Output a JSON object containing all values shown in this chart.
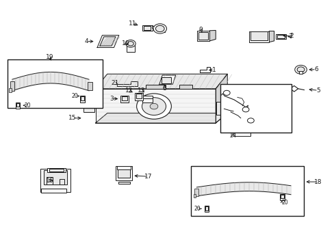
{
  "bg_color": "#ffffff",
  "line_color": "#1a1a1a",
  "fig_width": 4.89,
  "fig_height": 3.6,
  "dpi": 100,
  "label_positions": {
    "1": [
      0.64,
      0.718,
      0.615,
      0.718
    ],
    "2": [
      0.87,
      0.855,
      0.838,
      0.855
    ],
    "3": [
      0.335,
      0.6,
      0.353,
      0.6
    ],
    "4": [
      0.265,
      0.833,
      0.288,
      0.833
    ],
    "5": [
      0.95,
      0.632,
      0.92,
      0.632
    ],
    "6": [
      0.945,
      0.72,
      0.915,
      0.72
    ],
    "7": [
      0.865,
      0.852,
      0.84,
      0.852
    ],
    "8": [
      0.494,
      0.645,
      0.494,
      0.665
    ],
    "9": [
      0.6,
      0.88,
      0.607,
      0.862
    ],
    "10": [
      0.378,
      0.826,
      0.39,
      0.81
    ],
    "11": [
      0.395,
      0.905,
      0.418,
      0.895
    ],
    "12": [
      0.388,
      0.633,
      0.405,
      0.624
    ],
    "13": [
      0.42,
      0.635,
      0.437,
      0.618
    ],
    "14": [
      0.697,
      0.45,
      0.697,
      0.473
    ],
    "15": [
      0.218,
      0.52,
      0.248,
      0.52
    ],
    "16": [
      0.148,
      0.268,
      0.178,
      0.268
    ],
    "17": [
      0.44,
      0.282,
      0.408,
      0.282
    ],
    "18": [
      0.952,
      0.262,
      0.92,
      0.262
    ],
    "19": [
      0.148,
      0.768,
      0.17,
      0.75
    ],
    "20a": [
      0.248,
      0.618,
      0.248,
      0.635
    ],
    "20b": [
      0.072,
      0.548,
      0.09,
      0.548
    ],
    "20c": [
      0.7,
      0.2,
      0.718,
      0.2
    ],
    "20d": [
      0.62,
      0.152,
      0.638,
      0.155
    ],
    "21": [
      0.345,
      0.663,
      0.358,
      0.648
    ]
  }
}
